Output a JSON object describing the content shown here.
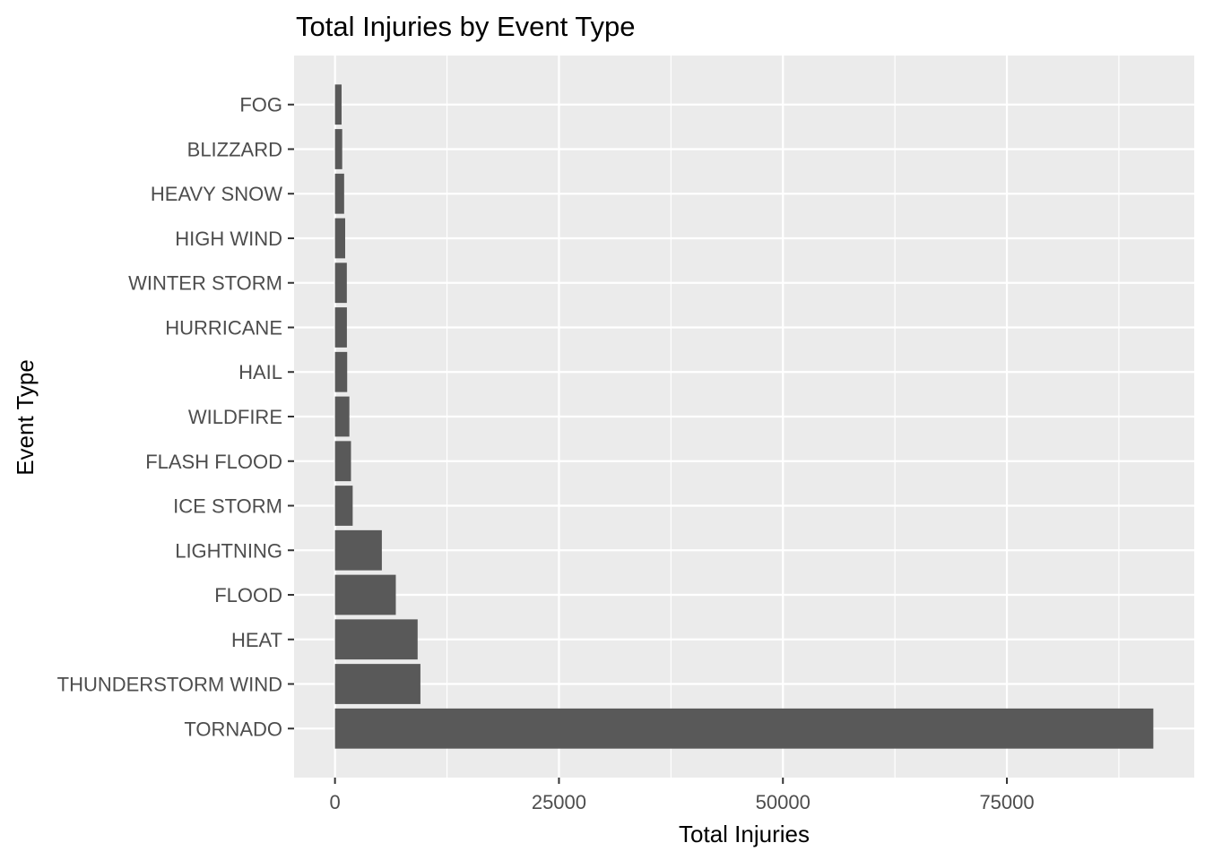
{
  "chart_data": {
    "type": "bar",
    "orientation": "horizontal",
    "title": "Total Injuries by Event Type",
    "xlabel": "Total Injuries",
    "ylabel": "Event Type",
    "categories": [
      "TORNADO",
      "THUNDERSTORM WIND",
      "HEAT",
      "FLOOD",
      "LIGHTNING",
      "ICE STORM",
      "FLASH FLOOD",
      "WILDFIRE",
      "HAIL",
      "HURRICANE",
      "WINTER STORM",
      "HIGH WIND",
      "HEAVY SNOW",
      "BLIZZARD",
      "FOG"
    ],
    "values": [
      91346,
      9536,
      9224,
      6789,
      5230,
      1975,
      1785,
      1606,
      1361,
      1328,
      1321,
      1137,
      1021,
      805,
      734
    ],
    "xlim": [
      -4567,
      95913
    ],
    "xticks": [
      0,
      25000,
      50000,
      75000
    ],
    "xtick_labels": [
      "0",
      "25000",
      "50000",
      "75000"
    ],
    "grid": true,
    "colors": {
      "panel_background": "#ebebeb",
      "grid_major": "#ffffff",
      "bar_fill": "#595959",
      "tick_mark": "#333333",
      "tick_label": "#4d4d4d",
      "title": "#000000"
    }
  }
}
